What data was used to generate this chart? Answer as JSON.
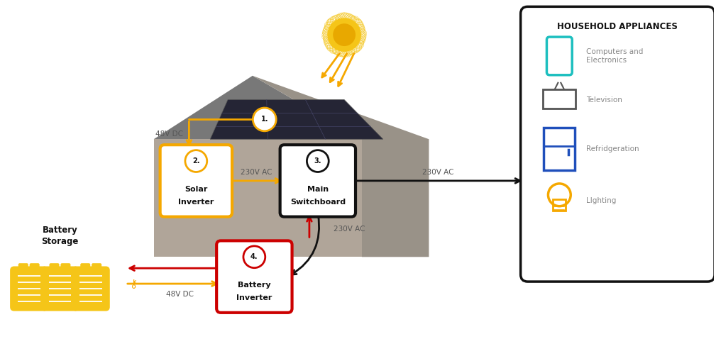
{
  "fig_width": 10.09,
  "fig_height": 4.78,
  "bg_color": "#ffffff",
  "orange": "#F5A800",
  "red": "#CC0000",
  "black": "#111111",
  "gray_roof": "#777777",
  "gray_body": "#A89E94",
  "gray_side": "#8A8078",
  "teal": "#1DBFBF",
  "blue": "#1F4FBB",
  "dark_gray": "#555555",
  "sun_color": "#F5C518",
  "sun_inner": "#E8A800",
  "panel_color": "#252535",
  "title": "HOUSEHOLD APPLIANCES",
  "appliance_labels": [
    "Computers and\nElectronics",
    "Television",
    "Refridgeration",
    "Llghting"
  ],
  "label_48v_1": "48V DC",
  "label_230v_1": "230V AC",
  "label_230v_2": "230V AC",
  "label_230v_3": "230V AC",
  "label_48v_2": "48V DC",
  "battery_label": "Battery\nStorage"
}
